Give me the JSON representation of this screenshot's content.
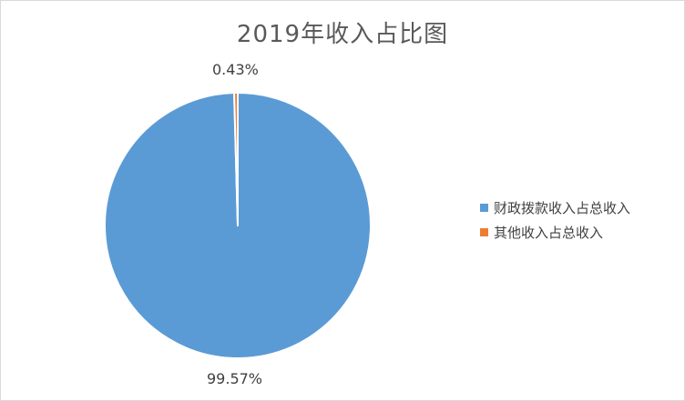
{
  "chart_data": {
    "type": "pie",
    "title": "2019年收入占比图",
    "categories": [
      "财政拨款收入占总收入",
      "其他收入占总收入"
    ],
    "values": [
      99.57,
      0.43
    ],
    "data_labels": [
      "99.57%",
      "0.43%"
    ],
    "colors": [
      "#5B9BD5",
      "#ED7D31"
    ],
    "legend_position": "right"
  }
}
